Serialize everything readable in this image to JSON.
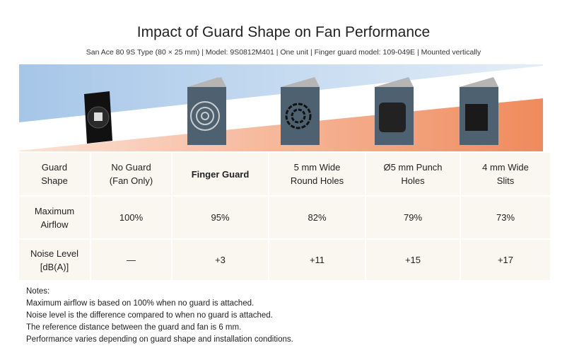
{
  "title": "Impact of Guard Shape on Fan Performance",
  "subtitle": "San Ace 80 9S Type (80 × 25 mm) | Model: 9S0812M401 | One unit | Finger guard model: 109-049E | Mounted vertically",
  "colors": {
    "airflow_blue": "#a9c9ea",
    "noise_orange": "#f08c60",
    "cell_bg": "#faf7f0",
    "guard_panel": "#4d6170"
  },
  "images": [
    "fan",
    "finger-guard",
    "round-holes-guard",
    "punch-holes-guard",
    "slits-guard"
  ],
  "table": {
    "rows": [
      {
        "label": "Guard\nShape",
        "cells": [
          "No Guard\n(Fan Only)",
          "Finger Guard",
          "5 mm Wide\nRound Holes",
          "Ø5 mm Punch\nHoles",
          "4 mm Wide\nSlits"
        ]
      },
      {
        "label": "Maximum\nAirflow",
        "cells": [
          "100%",
          "95%",
          "82%",
          "79%",
          "73%"
        ]
      },
      {
        "label": "Noise Level\n[dB(A)]",
        "cells": [
          "—",
          "+3",
          "+11",
          "+15",
          "+17"
        ]
      }
    ]
  },
  "notes": {
    "heading": "Notes:",
    "lines": [
      "Maximum airflow is based on 100% when no guard is attached.",
      "Noise level is the difference compared to when no guard is attached.",
      "The reference distance between the guard and fan is 6 mm.",
      "Performance varies depending on guard shape and installation conditions."
    ]
  }
}
